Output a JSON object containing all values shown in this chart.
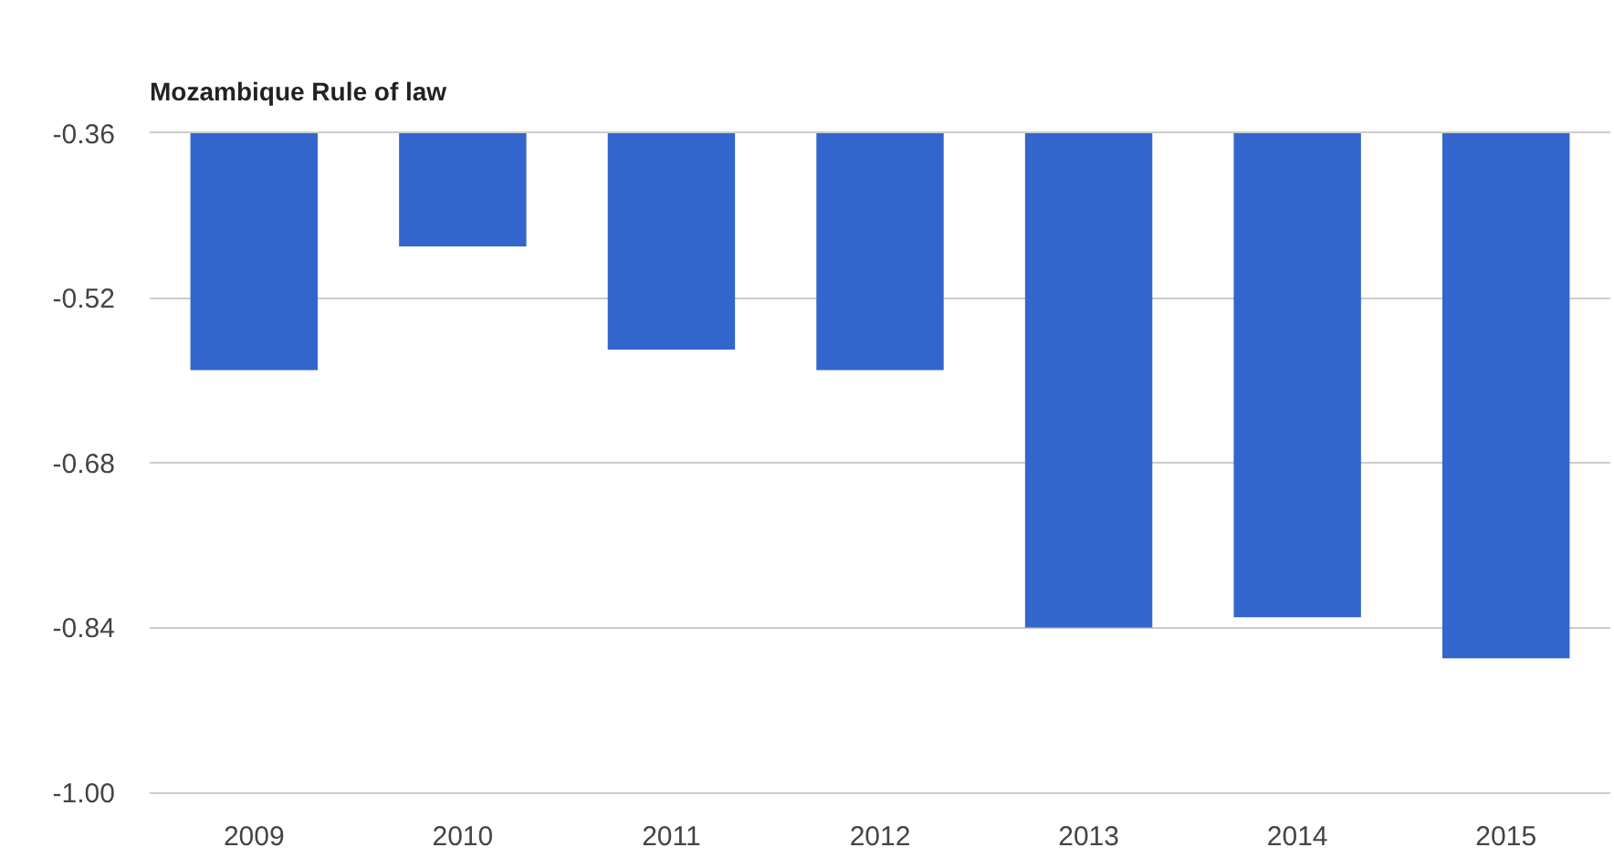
{
  "chart_data": {
    "type": "bar",
    "title": "Mozambique Rule of law",
    "categories": [
      "2009",
      "2010",
      "2011",
      "2012",
      "2013",
      "2014",
      "2015"
    ],
    "values": [
      -0.59,
      -0.47,
      -0.57,
      -0.59,
      -0.84,
      -0.83,
      -0.87
    ],
    "color": "#3366cc",
    "ylim": [
      -1.0,
      -0.36
    ],
    "yticks": [
      {
        "value": -1.0,
        "label": "-1.00"
      },
      -0.84,
      -0.68,
      -0.52,
      -0.36
    ],
    "grid": "y",
    "legend": false
  }
}
